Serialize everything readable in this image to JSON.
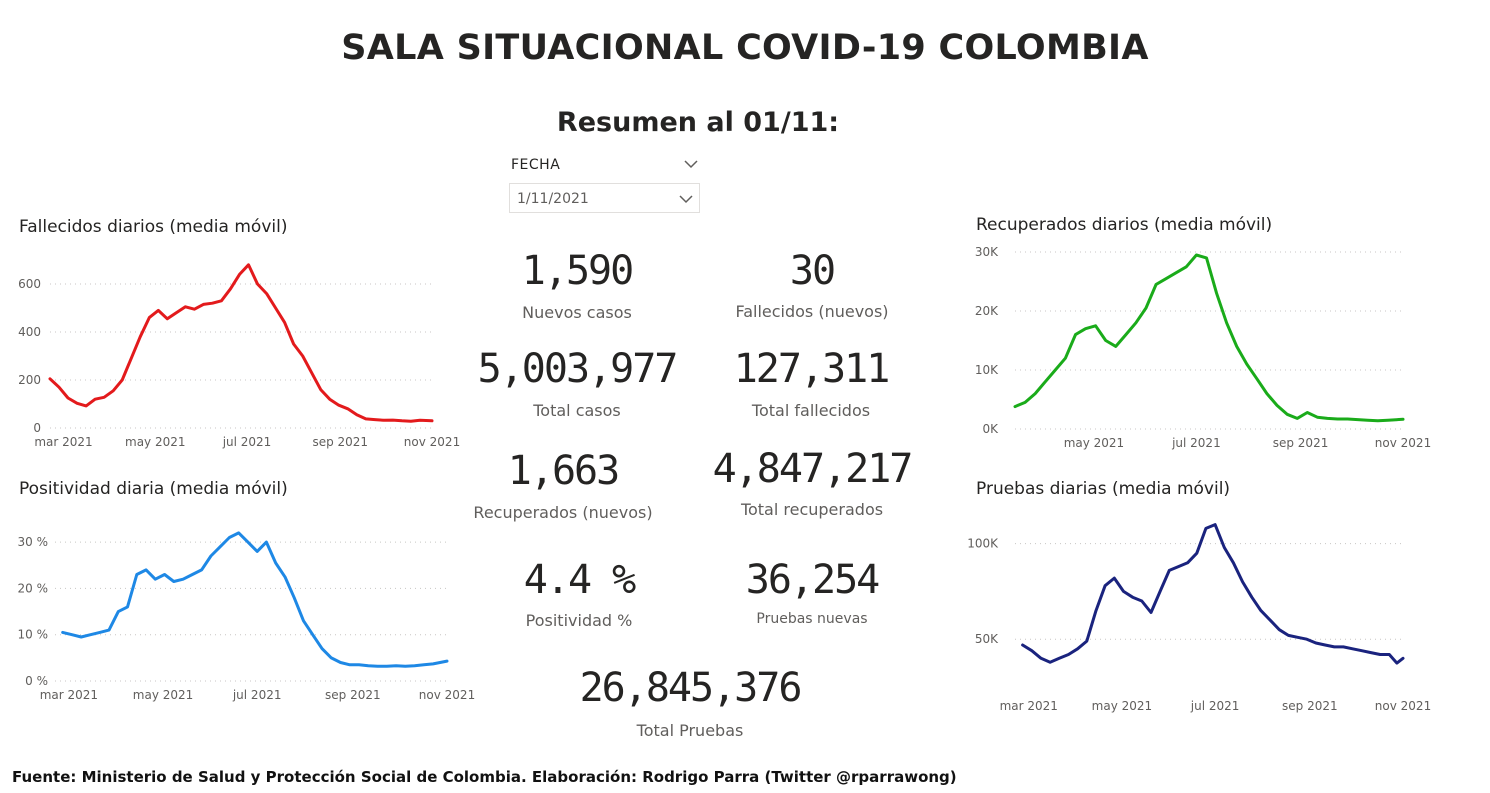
{
  "title": "SALA SITUACIONAL COVID-19 COLOMBIA",
  "summary_title": "Resumen al 01/11:",
  "filter": {
    "label": "FECHA",
    "value": "1/11/2021"
  },
  "kpis": {
    "nuevos_casos": {
      "value": "1,590",
      "label": "Nuevos casos"
    },
    "fallecidos_nuevos": {
      "value": "30",
      "label": "Fallecidos (nuevos)"
    },
    "total_casos": {
      "value": "5,003,977",
      "label": "Total casos"
    },
    "total_fallecidos": {
      "value": "127,311",
      "label": "Total fallecidos"
    },
    "recuperados_nuevos": {
      "value": "1,663",
      "label": "Recuperados (nuevos)"
    },
    "total_recuperados": {
      "value": "4,847,217",
      "label": "Total recuperados"
    },
    "positividad": {
      "value": "4.4 %",
      "label": "Positividad %"
    },
    "pruebas_nuevas": {
      "value": "36,254",
      "label": "Pruebas nuevas"
    },
    "total_pruebas": {
      "value": "26,845,376",
      "label": "Total Pruebas"
    }
  },
  "footer": "Fuente: Ministerio de Salud y Protección Social de Colombia. Elaboración: Rodrigo Parra (Twitter @rparrawong)",
  "chart_data": [
    {
      "id": "fallecidos",
      "type": "line",
      "title": "Fallecidos diarios (media móvil)",
      "color": "#e31a1c",
      "x_start": "2021-02-20",
      "x_end": "2021-11-01",
      "ylim": [
        0,
        700
      ],
      "yticks": [
        0,
        200,
        400,
        600
      ],
      "ytick_labels": [
        "0",
        "200",
        "400",
        "600"
      ],
      "xticks": [
        {
          "date": "2021-03-01",
          "label": "mar 2021"
        },
        {
          "date": "2021-05-01",
          "label": "may 2021"
        },
        {
          "date": "2021-07-01",
          "label": "jul 2021"
        },
        {
          "date": "2021-09-01",
          "label": "sep 2021"
        },
        {
          "date": "2021-11-01",
          "label": "nov 2021"
        }
      ],
      "grid": true,
      "series": [
        {
          "x": [
            "2021-02-20",
            "2021-02-26",
            "2021-03-04",
            "2021-03-10",
            "2021-03-16",
            "2021-03-22",
            "2021-03-28",
            "2021-04-03",
            "2021-04-09",
            "2021-04-15",
            "2021-04-21",
            "2021-04-27",
            "2021-05-03",
            "2021-05-09",
            "2021-05-15",
            "2021-05-21",
            "2021-05-27",
            "2021-06-02",
            "2021-06-08",
            "2021-06-14",
            "2021-06-20",
            "2021-06-26",
            "2021-07-02",
            "2021-07-08",
            "2021-07-14",
            "2021-07-20",
            "2021-07-26",
            "2021-08-01",
            "2021-08-07",
            "2021-08-13",
            "2021-08-19",
            "2021-08-25",
            "2021-08-31",
            "2021-09-06",
            "2021-09-12",
            "2021-09-18",
            "2021-09-24",
            "2021-09-30",
            "2021-10-06",
            "2021-10-12",
            "2021-10-18",
            "2021-10-24",
            "2021-11-01"
          ],
          "y": [
            205,
            170,
            125,
            103,
            92,
            120,
            128,
            155,
            200,
            290,
            380,
            460,
            490,
            455,
            480,
            505,
            495,
            515,
            520,
            530,
            580,
            640,
            680,
            600,
            560,
            500,
            440,
            350,
            300,
            230,
            160,
            120,
            95,
            80,
            55,
            38,
            35,
            32,
            33,
            30,
            28,
            32,
            30
          ]
        }
      ]
    },
    {
      "id": "positividad",
      "type": "line",
      "title": "Positividad diaria (media móvil)",
      "color": "#1e88e5",
      "x_start": "2021-02-20",
      "x_end": "2021-11-01",
      "ylim": [
        0,
        35
      ],
      "yticks": [
        0,
        10,
        20,
        30
      ],
      "ytick_labels": [
        "0 %",
        "10 %",
        "20 %",
        "30 %"
      ],
      "xticks": [
        {
          "date": "2021-03-01",
          "label": "mar 2021"
        },
        {
          "date": "2021-05-01",
          "label": "may 2021"
        },
        {
          "date": "2021-07-01",
          "label": "jul 2021"
        },
        {
          "date": "2021-09-01",
          "label": "sep 2021"
        },
        {
          "date": "2021-11-01",
          "label": "nov 2021"
        }
      ],
      "grid": true,
      "series": [
        {
          "x": [
            "2021-02-25",
            "2021-03-03",
            "2021-03-09",
            "2021-03-15",
            "2021-03-21",
            "2021-03-27",
            "2021-04-02",
            "2021-04-08",
            "2021-04-14",
            "2021-04-20",
            "2021-04-26",
            "2021-05-02",
            "2021-05-08",
            "2021-05-14",
            "2021-05-20",
            "2021-05-26",
            "2021-06-01",
            "2021-06-07",
            "2021-06-13",
            "2021-06-19",
            "2021-06-25",
            "2021-07-01",
            "2021-07-07",
            "2021-07-13",
            "2021-07-19",
            "2021-07-25",
            "2021-07-31",
            "2021-08-06",
            "2021-08-12",
            "2021-08-18",
            "2021-08-24",
            "2021-08-30",
            "2021-09-05",
            "2021-09-11",
            "2021-09-17",
            "2021-09-23",
            "2021-09-29",
            "2021-10-05",
            "2021-10-11",
            "2021-10-17",
            "2021-10-23",
            "2021-11-01"
          ],
          "y": [
            10.5,
            10,
            9.5,
            10,
            10.5,
            11,
            15,
            16,
            23,
            24,
            22,
            23,
            21.5,
            22,
            23,
            24,
            27,
            29,
            31,
            32,
            30,
            28,
            30,
            25.5,
            22.5,
            18,
            13,
            10,
            7,
            5,
            4,
            3.5,
            3.5,
            3.3,
            3.2,
            3.2,
            3.3,
            3.2,
            3.3,
            3.5,
            3.7,
            4.3
          ]
        }
      ]
    },
    {
      "id": "recuperados",
      "type": "line",
      "title": "Recuperados diarios (media móvil)",
      "color": "#1aab1a",
      "x_start": "2021-03-15",
      "x_end": "2021-11-01",
      "ylim": [
        0,
        30000
      ],
      "yticks": [
        0,
        10000,
        20000,
        30000
      ],
      "ytick_labels": [
        "0K",
        "10K",
        "20K",
        "30K"
      ],
      "xticks": [
        {
          "date": "2021-05-01",
          "label": "may 2021"
        },
        {
          "date": "2021-07-01",
          "label": "jul 2021"
        },
        {
          "date": "2021-09-01",
          "label": "sep 2021"
        },
        {
          "date": "2021-11-01",
          "label": "nov 2021"
        }
      ],
      "grid": true,
      "series": [
        {
          "x": [
            "2021-03-15",
            "2021-03-21",
            "2021-03-27",
            "2021-04-02",
            "2021-04-08",
            "2021-04-14",
            "2021-04-20",
            "2021-04-26",
            "2021-05-02",
            "2021-05-08",
            "2021-05-14",
            "2021-05-20",
            "2021-05-26",
            "2021-06-01",
            "2021-06-07",
            "2021-06-13",
            "2021-06-19",
            "2021-06-25",
            "2021-07-01",
            "2021-07-07",
            "2021-07-13",
            "2021-07-19",
            "2021-07-25",
            "2021-07-31",
            "2021-08-06",
            "2021-08-12",
            "2021-08-18",
            "2021-08-24",
            "2021-08-30",
            "2021-09-05",
            "2021-09-11",
            "2021-09-17",
            "2021-09-23",
            "2021-09-29",
            "2021-10-05",
            "2021-10-11",
            "2021-10-17",
            "2021-10-23",
            "2021-11-01"
          ],
          "y": [
            3800,
            4500,
            6000,
            8000,
            10000,
            12000,
            16000,
            17000,
            17500,
            15000,
            14000,
            16000,
            18000,
            20500,
            24500,
            25500,
            26500,
            27500,
            29500,
            29000,
            23000,
            18000,
            14000,
            11000,
            8500,
            6000,
            4000,
            2500,
            1800,
            2800,
            2000,
            1800,
            1700,
            1700,
            1600,
            1500,
            1400,
            1500,
            1650
          ]
        }
      ]
    },
    {
      "id": "pruebas",
      "type": "line",
      "title": "Pruebas diarias (media móvil)",
      "color": "#1a237e",
      "x_start": "2021-02-20",
      "x_end": "2021-11-01",
      "ylim": [
        25000,
        115000
      ],
      "yticks": [
        50000,
        100000
      ],
      "ytick_labels": [
        "50K",
        "100K"
      ],
      "xticks": [
        {
          "date": "2021-03-01",
          "label": "mar 2021"
        },
        {
          "date": "2021-05-01",
          "label": "may 2021"
        },
        {
          "date": "2021-07-01",
          "label": "jul 2021"
        },
        {
          "date": "2021-09-01",
          "label": "sep 2021"
        },
        {
          "date": "2021-11-01",
          "label": "nov 2021"
        }
      ],
      "grid": true,
      "series": [
        {
          "x": [
            "2021-02-25",
            "2021-03-03",
            "2021-03-09",
            "2021-03-15",
            "2021-03-21",
            "2021-03-27",
            "2021-04-02",
            "2021-04-08",
            "2021-04-14",
            "2021-04-20",
            "2021-04-26",
            "2021-05-02",
            "2021-05-08",
            "2021-05-14",
            "2021-05-20",
            "2021-05-26",
            "2021-06-01",
            "2021-06-07",
            "2021-06-13",
            "2021-06-19",
            "2021-06-25",
            "2021-07-01",
            "2021-07-07",
            "2021-07-13",
            "2021-07-19",
            "2021-07-25",
            "2021-07-31",
            "2021-08-06",
            "2021-08-12",
            "2021-08-18",
            "2021-08-24",
            "2021-08-30",
            "2021-09-05",
            "2021-09-11",
            "2021-09-17",
            "2021-09-23",
            "2021-09-29",
            "2021-10-05",
            "2021-10-11",
            "2021-10-17",
            "2021-10-23",
            "2021-10-28",
            "2021-11-01"
          ],
          "y": [
            47000,
            44000,
            40000,
            38000,
            40000,
            42000,
            45000,
            49000,
            65000,
            78000,
            82000,
            75000,
            72000,
            70000,
            64000,
            75000,
            86000,
            88000,
            90000,
            95000,
            108000,
            110000,
            98000,
            90000,
            80000,
            72000,
            65000,
            60000,
            55000,
            52000,
            51000,
            50000,
            48000,
            47000,
            46000,
            46000,
            45000,
            44000,
            43000,
            42000,
            42000,
            37500,
            40000
          ]
        }
      ]
    }
  ]
}
